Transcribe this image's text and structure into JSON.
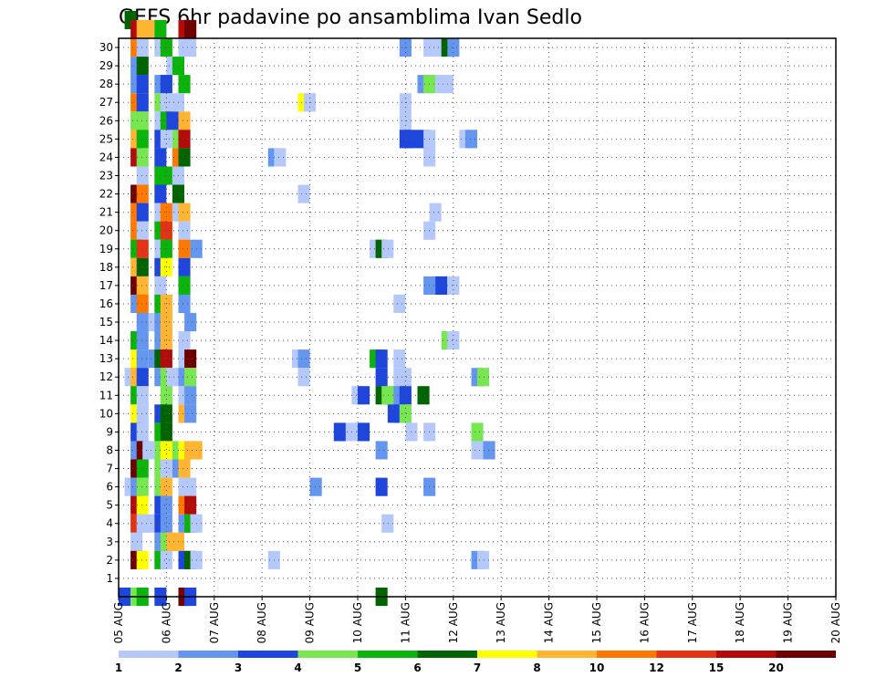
{
  "chart_data": {
    "type": "heatmap",
    "title": "GEFS 6hr padavine po ansamblima Ivan Sedlo",
    "y_tick_labels": [
      "1",
      "2",
      "3",
      "4",
      "5",
      "6",
      "7",
      "8",
      "9",
      "10",
      "11",
      "12",
      "13",
      "14",
      "15",
      "16",
      "17",
      "18",
      "19",
      "20",
      "21",
      "22",
      "23",
      "24",
      "25",
      "26",
      "27",
      "28",
      "29",
      "30"
    ],
    "x_tick_labels": [
      "05 AUG",
      "06 AUG",
      "07 AUG",
      "08 AUG",
      "09 AUG",
      "10 AUG",
      "11 AUG",
      "12 AUG",
      "13 AUG",
      "14 AUG",
      "15 AUG",
      "16 AUG",
      "17 AUG",
      "18 AUG",
      "19 AUG",
      "20 AUG"
    ],
    "x_units": "6-hour steps from 05 AUG 00Z",
    "y_range": [
      0,
      30
    ],
    "x_range": [
      0,
      60
    ],
    "grid": true,
    "legend": {
      "placement": "bottom",
      "labels": [
        "1",
        "2",
        "3",
        "4",
        "5",
        "6",
        "7",
        "8",
        "10",
        "12",
        "15",
        "20"
      ],
      "colors": [
        "#b4c8fa",
        "#6496f0",
        "#1e46dc",
        "#78e650",
        "#0ab40a",
        "#006400",
        "#ffff00",
        "#ffb432",
        "#ff7800",
        "#e63214",
        "#b40a0a",
        "#6e0000"
      ]
    },
    "cells": [
      [
        0.5,
        31,
        1,
        6
      ],
      [
        1,
        31,
        0,
        11
      ],
      [
        1.5,
        31,
        0,
        8
      ],
      [
        2,
        31,
        0,
        8
      ],
      [
        3,
        31,
        0,
        5
      ],
      [
        5,
        31,
        0,
        11
      ],
      [
        5.5,
        31,
        0,
        12
      ],
      [
        0,
        0,
        0,
        3
      ],
      [
        1,
        0,
        0,
        4
      ],
      [
        1.5,
        0,
        0,
        5
      ],
      [
        3,
        0,
        0,
        3
      ],
      [
        5,
        0,
        0,
        12
      ],
      [
        5.5,
        0,
        0,
        3
      ],
      [
        21.5,
        0,
        0,
        6
      ],
      [
        1,
        30,
        0,
        9
      ],
      [
        1.5,
        30,
        0,
        1
      ],
      [
        3,
        30,
        0,
        1
      ],
      [
        3.5,
        30,
        0,
        5
      ],
      [
        5,
        30,
        0,
        1
      ],
      [
        5.5,
        30,
        0,
        1
      ],
      [
        23.5,
        30,
        0,
        2
      ],
      [
        25.5,
        30,
        0,
        1
      ],
      [
        26.5,
        30,
        0,
        1
      ],
      [
        27,
        30,
        0,
        6
      ],
      [
        27.5,
        30,
        0,
        2
      ],
      [
        1,
        29,
        0,
        2
      ],
      [
        1.5,
        29,
        0,
        6
      ],
      [
        4,
        29,
        0,
        1
      ],
      [
        4.5,
        29,
        0,
        5
      ],
      [
        1,
        28,
        0,
        2
      ],
      [
        1.5,
        28,
        0,
        3
      ],
      [
        3,
        28,
        0,
        2
      ],
      [
        3.5,
        28,
        0,
        3
      ],
      [
        5,
        28,
        0,
        5
      ],
      [
        25,
        28,
        0,
        2
      ],
      [
        25.5,
        28,
        0,
        4
      ],
      [
        26.5,
        28,
        0,
        1
      ],
      [
        27,
        28,
        0,
        1
      ],
      [
        1,
        27,
        0,
        9
      ],
      [
        1.5,
        27,
        0,
        3
      ],
      [
        3,
        27,
        0,
        4
      ],
      [
        3.5,
        27,
        0,
        1
      ],
      [
        4.5,
        27,
        0,
        1
      ],
      [
        15,
        27,
        0,
        7
      ],
      [
        15.5,
        27,
        0,
        1
      ],
      [
        23.5,
        27,
        0,
        1
      ],
      [
        1,
        26,
        0,
        4
      ],
      [
        1.5,
        26,
        0,
        4
      ],
      [
        3,
        26,
        0,
        1
      ],
      [
        3.5,
        26,
        0,
        5
      ],
      [
        4,
        26,
        0,
        3
      ],
      [
        5,
        26,
        0,
        8
      ],
      [
        23.5,
        26,
        0,
        1
      ],
      [
        1,
        25,
        0,
        8
      ],
      [
        1.5,
        25,
        0,
        5
      ],
      [
        3,
        25,
        0,
        3
      ],
      [
        3.5,
        25,
        0,
        1
      ],
      [
        4.5,
        25,
        0,
        4
      ],
      [
        5,
        25,
        0,
        11
      ],
      [
        23.5,
        25,
        0,
        3
      ],
      [
        24,
        25,
        0,
        3
      ],
      [
        25,
        25,
        0,
        3
      ],
      [
        25.5,
        25,
        0,
        1
      ],
      [
        28.5,
        25,
        0,
        1
      ],
      [
        29,
        25,
        0,
        2
      ],
      [
        1,
        24,
        0,
        11
      ],
      [
        1.5,
        24,
        0,
        4
      ],
      [
        3,
        24,
        0,
        3
      ],
      [
        4.5,
        24,
        0,
        9
      ],
      [
        5,
        24,
        0,
        6
      ],
      [
        12.5,
        24,
        0,
        2
      ],
      [
        13,
        24,
        0,
        1
      ],
      [
        25.5,
        24,
        0,
        1
      ],
      [
        1.5,
        23,
        0,
        1
      ],
      [
        3,
        23,
        0,
        5
      ],
      [
        3.5,
        23,
        0,
        5
      ],
      [
        4.5,
        23,
        0,
        1
      ],
      [
        1,
        22,
        0,
        12
      ],
      [
        1.5,
        22,
        0,
        9
      ],
      [
        3,
        22,
        0,
        3
      ],
      [
        4.5,
        22,
        0,
        6
      ],
      [
        15,
        22,
        0,
        1
      ],
      [
        1,
        21,
        0,
        9
      ],
      [
        1.5,
        21,
        0,
        3
      ],
      [
        3,
        21,
        0,
        1
      ],
      [
        3.5,
        21,
        0,
        9
      ],
      [
        4.5,
        21,
        0,
        1
      ],
      [
        5,
        21,
        0,
        8
      ],
      [
        26,
        21,
        0,
        1
      ],
      [
        1,
        20,
        0,
        9
      ],
      [
        1.5,
        20,
        0,
        1
      ],
      [
        3,
        20,
        0,
        5
      ],
      [
        3.5,
        20,
        0,
        10
      ],
      [
        5,
        20,
        0,
        1
      ],
      [
        25.5,
        20,
        0,
        1
      ],
      [
        1,
        19,
        0,
        5
      ],
      [
        1.5,
        19,
        0,
        10
      ],
      [
        3,
        19,
        0,
        1
      ],
      [
        3.5,
        19,
        0,
        5
      ],
      [
        5,
        19,
        0,
        9
      ],
      [
        6,
        19,
        0,
        2
      ],
      [
        21,
        19,
        0,
        1
      ],
      [
        21.5,
        19,
        0,
        6
      ],
      [
        22,
        19,
        0,
        1
      ],
      [
        1,
        18,
        0,
        8
      ],
      [
        1.5,
        18,
        0,
        6
      ],
      [
        3,
        18,
        0,
        3
      ],
      [
        3.5,
        18,
        0,
        7
      ],
      [
        5,
        18,
        0,
        3
      ],
      [
        1,
        17,
        0,
        12
      ],
      [
        1.5,
        17,
        0,
        8
      ],
      [
        3,
        17,
        0,
        1
      ],
      [
        5,
        17,
        0,
        5
      ],
      [
        25.5,
        17,
        0,
        2
      ],
      [
        26.5,
        17,
        0,
        3
      ],
      [
        27.5,
        17,
        0,
        1
      ],
      [
        1,
        16,
        0,
        2
      ],
      [
        1.5,
        16,
        0,
        9
      ],
      [
        3,
        16,
        0,
        5
      ],
      [
        3.5,
        16,
        0,
        8
      ],
      [
        5,
        16,
        0,
        2
      ],
      [
        23,
        16,
        0,
        1
      ],
      [
        1.5,
        15,
        0,
        2
      ],
      [
        2.5,
        15,
        0,
        1
      ],
      [
        3,
        15,
        0,
        2
      ],
      [
        3.5,
        15,
        0,
        8
      ],
      [
        5.5,
        15,
        0,
        2
      ],
      [
        1,
        14,
        0,
        5
      ],
      [
        1.5,
        14,
        0,
        2
      ],
      [
        3,
        14,
        0,
        2
      ],
      [
        3.5,
        14,
        0,
        8
      ],
      [
        5,
        14,
        0,
        1
      ],
      [
        27,
        14,
        0,
        4
      ],
      [
        27.5,
        14,
        0,
        1
      ],
      [
        1,
        13,
        0,
        7
      ],
      [
        1.5,
        13,
        0,
        2
      ],
      [
        2.5,
        13,
        0,
        2
      ],
      [
        3,
        13,
        0,
        6
      ],
      [
        3.5,
        13,
        0,
        11
      ],
      [
        5,
        13,
        0,
        1
      ],
      [
        5.5,
        13,
        0,
        12
      ],
      [
        14.5,
        13,
        0,
        1
      ],
      [
        15,
        13,
        0,
        2
      ],
      [
        21,
        13,
        0,
        5
      ],
      [
        21.5,
        13,
        0,
        3
      ],
      [
        23,
        13,
        0,
        1
      ],
      [
        0.5,
        12,
        0,
        1
      ],
      [
        1,
        12,
        0,
        8
      ],
      [
        1.5,
        12,
        0,
        3
      ],
      [
        3,
        12,
        0,
        2
      ],
      [
        3.5,
        12,
        0,
        4
      ],
      [
        4,
        12,
        0,
        1
      ],
      [
        5,
        12,
        0,
        2
      ],
      [
        5.5,
        12,
        0,
        4
      ],
      [
        15,
        12,
        0,
        1
      ],
      [
        21.5,
        12,
        0,
        3
      ],
      [
        23,
        12,
        0,
        1
      ],
      [
        23.5,
        12,
        0,
        1
      ],
      [
        29.5,
        12,
        0,
        2
      ],
      [
        30,
        12,
        0,
        4
      ],
      [
        1,
        11,
        0,
        5
      ],
      [
        1.5,
        11,
        0,
        1
      ],
      [
        3.5,
        11,
        0,
        4
      ],
      [
        5,
        11,
        0,
        1
      ],
      [
        5.5,
        11,
        0,
        2
      ],
      [
        19.5,
        11,
        0,
        1
      ],
      [
        20,
        11,
        0,
        3
      ],
      [
        21.5,
        11,
        0,
        6
      ],
      [
        22,
        11,
        0,
        4
      ],
      [
        22.5,
        11,
        0,
        4
      ],
      [
        23,
        11,
        0,
        2
      ],
      [
        23.5,
        11,
        0,
        3
      ],
      [
        25,
        11,
        0,
        6
      ],
      [
        1,
        10,
        0,
        7
      ],
      [
        1.5,
        10,
        0,
        1
      ],
      [
        3,
        10,
        0,
        3
      ],
      [
        3.5,
        10,
        0,
        6
      ],
      [
        5,
        10,
        0,
        8
      ],
      [
        5.5,
        10,
        0,
        2
      ],
      [
        22.5,
        10,
        0,
        3
      ],
      [
        23,
        10,
        0,
        3
      ],
      [
        23.5,
        10,
        0,
        4
      ],
      [
        1,
        9,
        0,
        3
      ],
      [
        1.5,
        9,
        0,
        1
      ],
      [
        3,
        9,
        0,
        5
      ],
      [
        3.5,
        9,
        0,
        6
      ],
      [
        18,
        9,
        0,
        3
      ],
      [
        19,
        9,
        0,
        1
      ],
      [
        19.5,
        9,
        0,
        1
      ],
      [
        20,
        9,
        0,
        3
      ],
      [
        24,
        9,
        0,
        1
      ],
      [
        25.5,
        9,
        0,
        1
      ],
      [
        29.5,
        9,
        0,
        4
      ],
      [
        1,
        8,
        0,
        2
      ],
      [
        1.5,
        8,
        0,
        12
      ],
      [
        2,
        8,
        0,
        1
      ],
      [
        3,
        8,
        0,
        4
      ],
      [
        3.5,
        8,
        0,
        7
      ],
      [
        4.5,
        8,
        0,
        4
      ],
      [
        5,
        8,
        0,
        7
      ],
      [
        5.5,
        8,
        0,
        8
      ],
      [
        6,
        8,
        0,
        8
      ],
      [
        21.5,
        8,
        0,
        2
      ],
      [
        29.5,
        8,
        0,
        1
      ],
      [
        30.5,
        8,
        0,
        2
      ],
      [
        1,
        7,
        0,
        12
      ],
      [
        1.5,
        7,
        0,
        5
      ],
      [
        3,
        7,
        0,
        4
      ],
      [
        3.5,
        7,
        0,
        1
      ],
      [
        4.5,
        7,
        0,
        2
      ],
      [
        5,
        7,
        0,
        8
      ],
      [
        0.5,
        6,
        0,
        1
      ],
      [
        1,
        6,
        0,
        2
      ],
      [
        1.5,
        6,
        0,
        4
      ],
      [
        3,
        6,
        0,
        4
      ],
      [
        3.5,
        6,
        0,
        8
      ],
      [
        5,
        6,
        0,
        1
      ],
      [
        5.5,
        6,
        0,
        1
      ],
      [
        16,
        6,
        0,
        2
      ],
      [
        21.5,
        6,
        0,
        3
      ],
      [
        25.5,
        6,
        0,
        2
      ],
      [
        1,
        5,
        0,
        11
      ],
      [
        1.5,
        5,
        0,
        7
      ],
      [
        3,
        5,
        0,
        3
      ],
      [
        3.5,
        5,
        0,
        2
      ],
      [
        5,
        5,
        0,
        9
      ],
      [
        5.5,
        5,
        0,
        11
      ],
      [
        1,
        4,
        0,
        10
      ],
      [
        1.5,
        4,
        0,
        1
      ],
      [
        2,
        4,
        0,
        1
      ],
      [
        3,
        4,
        0,
        3
      ],
      [
        3.5,
        4,
        0,
        2
      ],
      [
        5,
        4,
        0,
        2
      ],
      [
        5.5,
        4,
        0,
        5
      ],
      [
        6,
        4,
        0,
        1
      ],
      [
        22,
        4,
        0,
        1
      ],
      [
        1,
        3,
        0,
        1
      ],
      [
        3,
        3,
        0,
        2
      ],
      [
        3.5,
        3,
        0,
        4
      ],
      [
        4,
        3,
        0,
        8
      ],
      [
        4.5,
        3,
        0,
        8
      ],
      [
        1,
        2,
        0,
        12
      ],
      [
        1.5,
        2,
        0,
        7
      ],
      [
        3,
        2,
        0,
        5
      ],
      [
        3.5,
        2,
        0,
        1
      ],
      [
        5,
        2,
        0,
        3
      ],
      [
        5.5,
        2,
        0,
        6
      ],
      [
        6,
        2,
        0,
        1
      ],
      [
        12.5,
        2,
        0,
        1
      ],
      [
        29.5,
        2,
        0,
        2
      ],
      [
        30,
        2,
        0,
        1
      ]
    ]
  }
}
